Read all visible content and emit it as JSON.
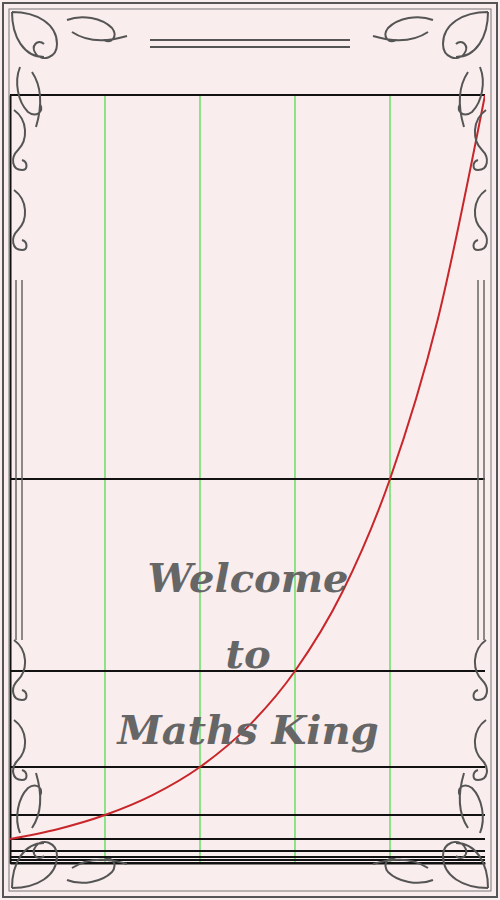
{
  "chart_data": {
    "type": "line",
    "annotations": [
      "Welcome",
      "to",
      "Maths King"
    ],
    "x": [
      0,
      0.5,
      1,
      1.5,
      2,
      2.5,
      3,
      3.5,
      4,
      4.5,
      5
    ],
    "series": [
      {
        "color": "#c8262a",
        "values": [
          1,
          1.41,
          2,
          2.83,
          4,
          5.66,
          8,
          11.3,
          16,
          22.6,
          32
        ]
      }
    ],
    "xlim": [
      0,
      5
    ],
    "ylim": [
      0,
      32
    ],
    "xticks": [
      1,
      2,
      3,
      4
    ],
    "yticks": [
      0,
      0.125,
      0.25,
      0.5,
      1,
      2,
      4,
      8,
      16,
      32
    ],
    "grid": true,
    "tick_labels": false
  }
}
